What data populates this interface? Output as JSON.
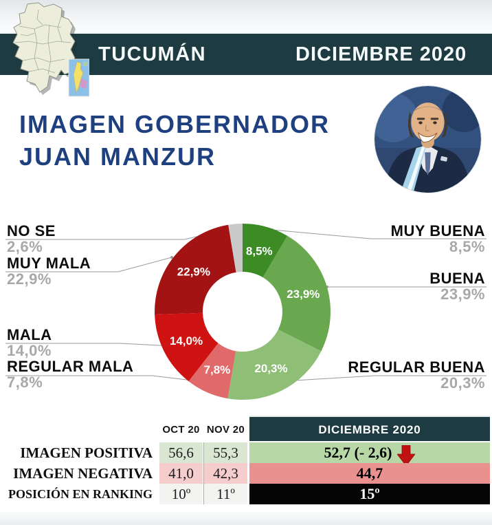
{
  "header": {
    "region": "TUCUMÁN",
    "period": "DICIEMBRE 2020"
  },
  "title": {
    "line1": "IMAGEN GOBERNADOR",
    "line2": "JUAN MANZUR"
  },
  "chart_data": {
    "type": "pie",
    "subtype": "donut",
    "title": "",
    "unit": "%",
    "start_angle_deg": 0,
    "clockwise": true,
    "inner_radius_ratio": 0.45,
    "legend_position": "sides",
    "segments": [
      {
        "label": "MUY BUENA",
        "value": 8.5,
        "display": "8,5%",
        "color": "#3c8b25"
      },
      {
        "label": "BUENA",
        "value": 23.9,
        "display": "23,9%",
        "color": "#69a84f"
      },
      {
        "label": "REGULAR BUENA",
        "value": 20.3,
        "display": "20,3%",
        "color": "#8fbf77"
      },
      {
        "label": "REGULAR MALA",
        "value": 7.8,
        "display": "7,8%",
        "color": "#e06a6a"
      },
      {
        "label": "MALA",
        "value": 14.0,
        "display": "14,0%",
        "color": "#cf1212"
      },
      {
        "label": "MUY MALA",
        "value": 22.9,
        "display": "22,9%",
        "color": "#a31313"
      },
      {
        "label": "NO SE",
        "value": 2.6,
        "display": "2,6%",
        "color": "#c9c9c9"
      }
    ]
  },
  "table": {
    "col_headers": [
      "OCT 20",
      "NOV 20",
      "DICIEMBRE 2020"
    ],
    "rows": [
      {
        "label": "IMAGEN POSITIVA",
        "oct": "56,6",
        "nov": "55,3",
        "dic": "52,7 (- 2,6)",
        "trend": "down"
      },
      {
        "label": "IMAGEN NEGATIVA",
        "oct": "41,0",
        "nov": "42,3",
        "dic": "44,7",
        "trend": "none"
      },
      {
        "label": "POSICIÓN EN RANKING",
        "oct": "10º",
        "nov": "11º",
        "dic": "15º",
        "trend": "none"
      }
    ]
  },
  "colors": {
    "band_teal": "#1d3b41",
    "title_blue": "#1f4080",
    "label_black": "#0d0d0d",
    "pct_gray": "#a8a8a8",
    "callout_line_gray": "#9a9a9a",
    "positive_row_bg": "#d9e7d2",
    "positive_current_bg": "#b7d8a6",
    "negative_row_bg": "#f5cdcd",
    "negative_current_bg": "#e9918f",
    "ranking_row_bg": "#f3f3f1",
    "ranking_current_bg": "#050505",
    "trend_arrow_red": "#c11212"
  }
}
